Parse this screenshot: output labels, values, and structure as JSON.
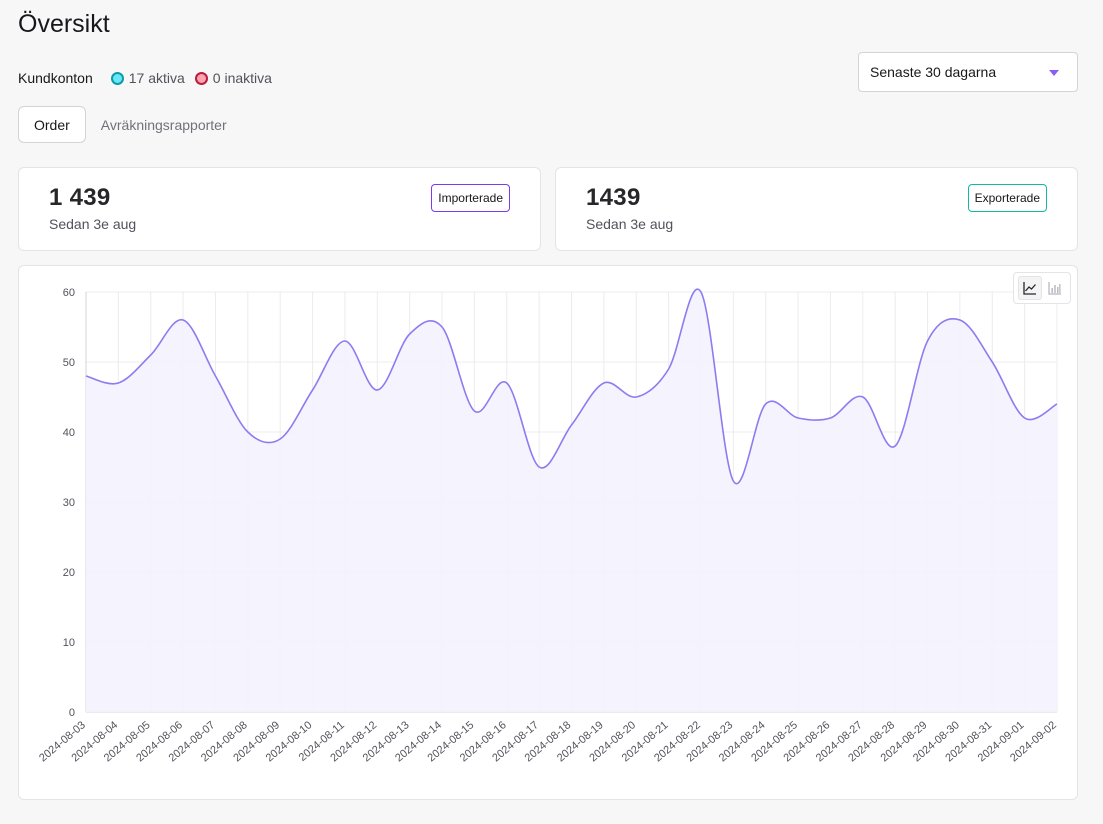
{
  "header": {
    "title": "Översikt"
  },
  "accounts": {
    "label": "Kundkonton",
    "active_text": "17 aktiva",
    "inactive_text": "0 inaktiva"
  },
  "range": {
    "selected": "Senaste 30 dagarna"
  },
  "tabs": [
    {
      "label": "Order",
      "selected": true
    },
    {
      "label": "Avräkningsrapporter",
      "selected": false
    }
  ],
  "stats": {
    "imported": {
      "value": "1 439",
      "subtitle": "Sedan 3e aug",
      "badge": "Importerade"
    },
    "exported": {
      "value": "1439",
      "subtitle": "Sedan 3e aug",
      "badge": "Exporterade"
    }
  },
  "colors": {
    "line": "#8b7cf0",
    "fill": "#f4f2fd",
    "grid": "#ececf0",
    "import_badge": "#7c3aed",
    "export_badge": "#14b8a6"
  },
  "chart_toggle": {
    "line_icon": "line-chart-icon",
    "bar_icon": "bar-chart-icon"
  },
  "chart_data": {
    "type": "area",
    "title": "",
    "xlabel": "",
    "ylabel": "",
    "ylim": [
      0,
      60
    ],
    "yticks": [
      0,
      10,
      20,
      30,
      40,
      50,
      60
    ],
    "grid": true,
    "categories": [
      "2024-08-03",
      "2024-08-04",
      "2024-08-05",
      "2024-08-06",
      "2024-08-07",
      "2024-08-08",
      "2024-08-09",
      "2024-08-10",
      "2024-08-11",
      "2024-08-12",
      "2024-08-13",
      "2024-08-14",
      "2024-08-15",
      "2024-08-16",
      "2024-08-17",
      "2024-08-18",
      "2024-08-19",
      "2024-08-20",
      "2024-08-21",
      "2024-08-22",
      "2024-08-23",
      "2024-08-24",
      "2024-08-25",
      "2024-08-26",
      "2024-08-27",
      "2024-08-28",
      "2024-08-29",
      "2024-08-30",
      "2024-08-31",
      "2024-09-01",
      "2024-09-02"
    ],
    "values": [
      48,
      47,
      51,
      56,
      48,
      40,
      39,
      46,
      53,
      46,
      54,
      55,
      43,
      47,
      35,
      41,
      47,
      45,
      49,
      60,
      33,
      44,
      42,
      42,
      45,
      38,
      53,
      56,
      50,
      42,
      44
    ]
  }
}
